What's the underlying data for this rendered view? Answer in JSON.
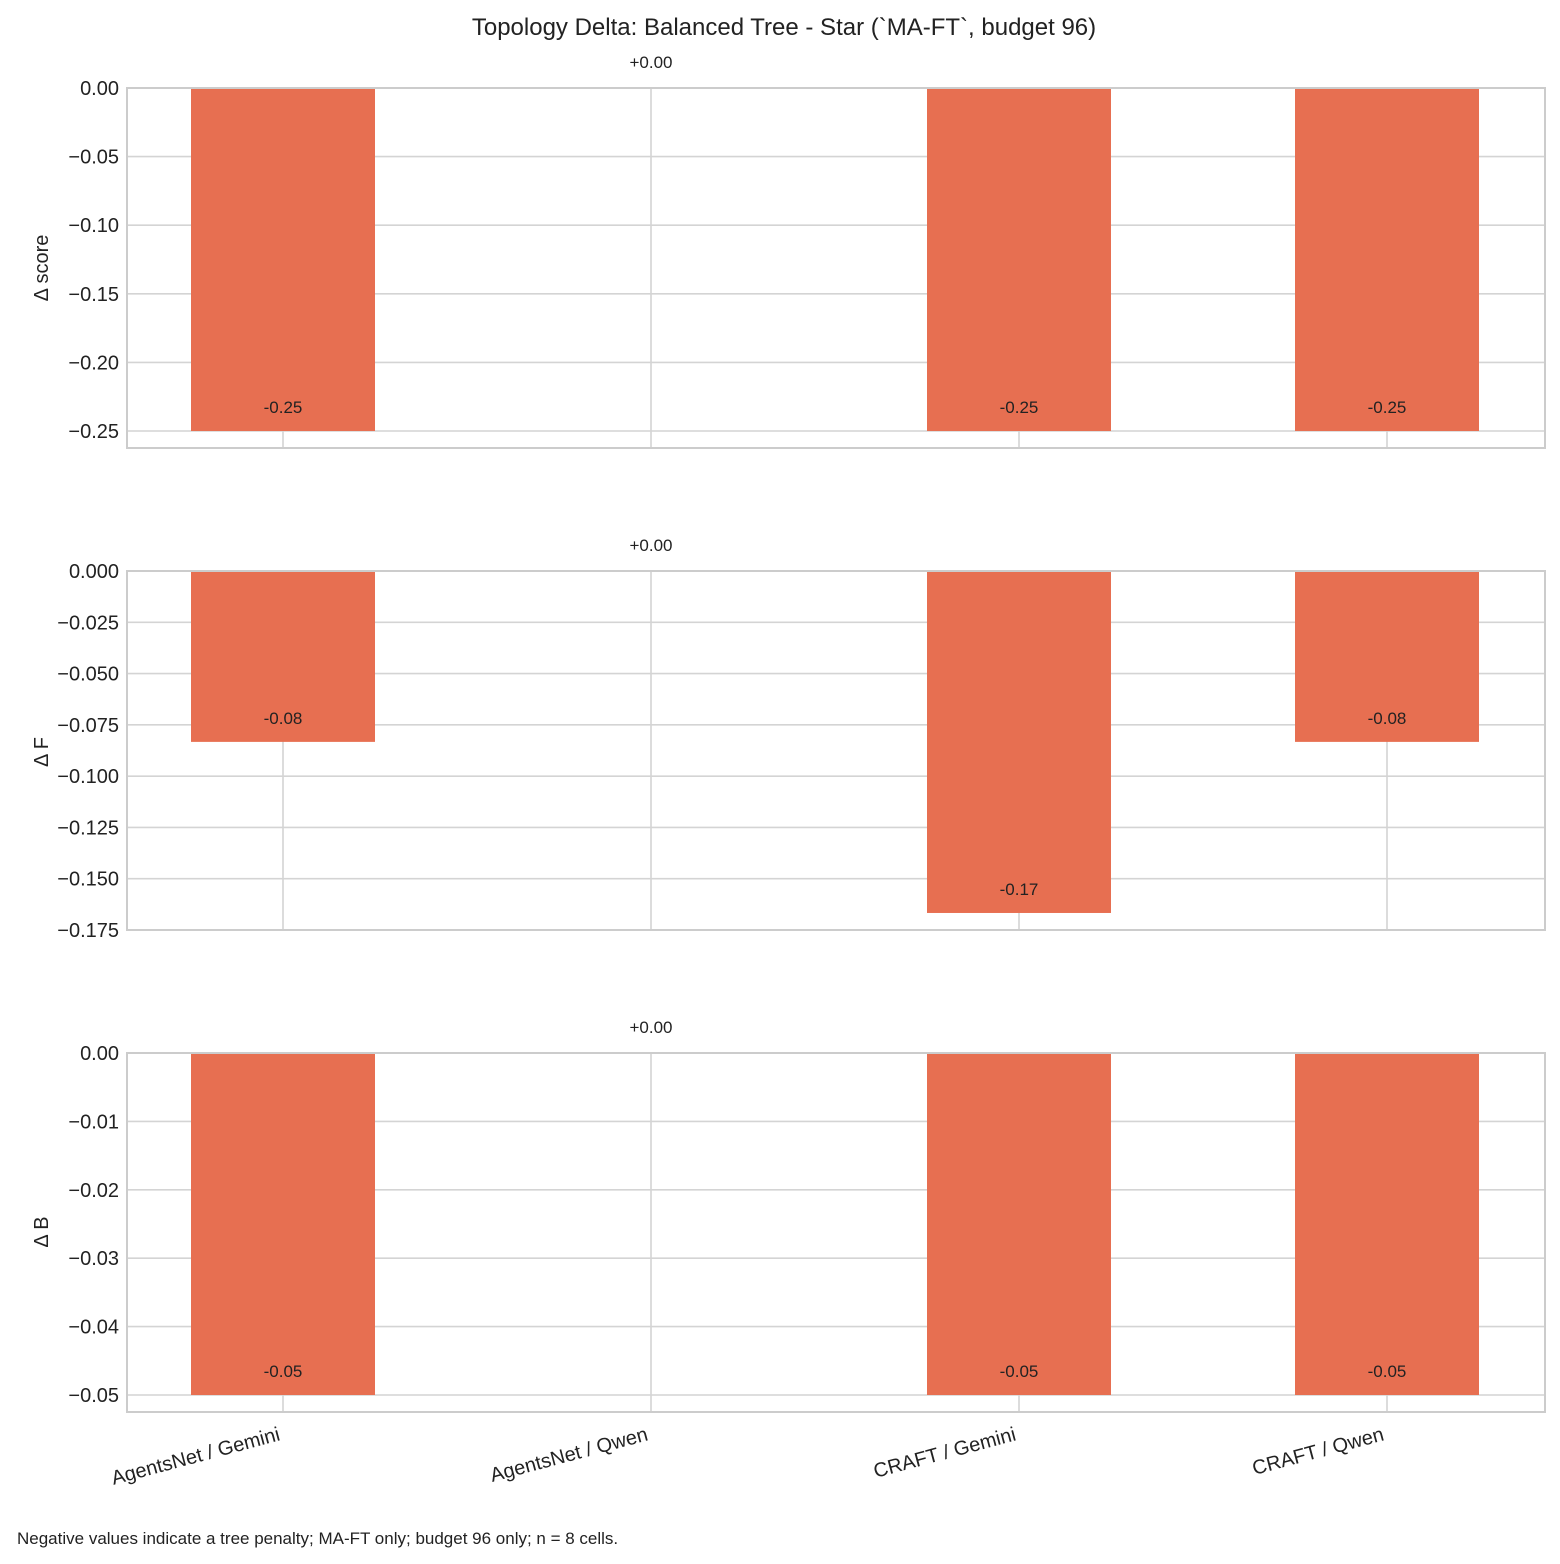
{
  "chart_data": {
    "type": "bar",
    "title": "Topology Delta: Balanced Tree - Star (`MA-FT`, budget 96)",
    "footnote": "Negative values indicate a tree penalty; MA-FT only; budget 96 only; n = 8 cells.",
    "categories": [
      "AgentsNet / Gemini",
      "AgentsNet / Qwen",
      "CRAFT / Gemini",
      "CRAFT / Qwen"
    ],
    "bar_color": "#e76f51",
    "grid": true,
    "panels": [
      {
        "ylabel": "Δ score",
        "values": [
          -0.25,
          0.0,
          -0.25,
          -0.25
        ],
        "value_labels": [
          "-0.25",
          "+0.00",
          "-0.25",
          "-0.25"
        ],
        "ylim": [
          -0.25,
          0.0
        ],
        "yticks": [
          0.0,
          -0.05,
          -0.1,
          -0.15,
          -0.2,
          -0.25
        ],
        "ytick_labels": [
          "0.00",
          "−0.05",
          "−0.10",
          "−0.15",
          "−0.20",
          "−0.25"
        ]
      },
      {
        "ylabel": "Δ F",
        "values": [
          -0.0833,
          0.0,
          -0.1667,
          -0.0833
        ],
        "value_labels": [
          "-0.08",
          "+0.00",
          "-0.17",
          "-0.08"
        ],
        "ylim": [
          -0.175,
          0.0
        ],
        "yticks": [
          0.0,
          -0.025,
          -0.05,
          -0.075,
          -0.1,
          -0.125,
          -0.15,
          -0.175
        ],
        "ytick_labels": [
          "0.000",
          "−0.025",
          "−0.050",
          "−0.075",
          "−0.100",
          "−0.125",
          "−0.150",
          "−0.175"
        ]
      },
      {
        "ylabel": "Δ B",
        "values": [
          -0.05,
          0.0,
          -0.05,
          -0.05
        ],
        "value_labels": [
          "-0.05",
          "+0.00",
          "-0.05",
          "-0.05"
        ],
        "ylim": [
          -0.05,
          0.0
        ],
        "yticks": [
          0.0,
          -0.01,
          -0.02,
          -0.03,
          -0.04,
          -0.05
        ],
        "ytick_labels": [
          "0.00",
          "−0.01",
          "−0.02",
          "−0.03",
          "−0.04",
          "−0.05"
        ]
      }
    ]
  }
}
